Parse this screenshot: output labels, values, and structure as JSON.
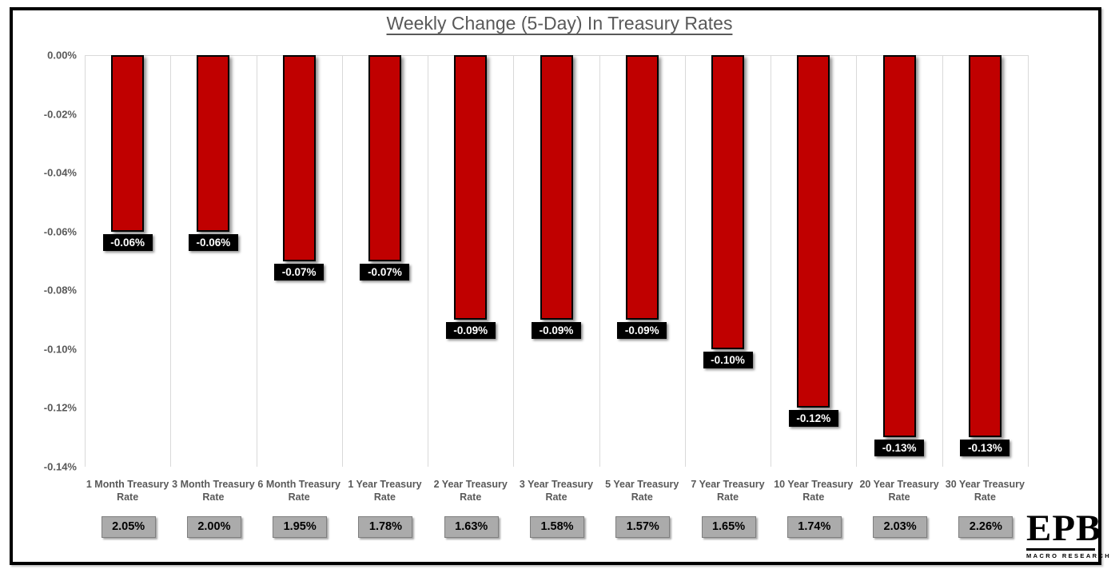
{
  "title": "Weekly Change (5-Day) In Treasury Rates",
  "logo": {
    "text": "EPB",
    "subtext": "MACRO RESEARCH"
  },
  "chart_data": {
    "type": "bar",
    "title": "Weekly Change (5-Day) In Treasury Rates",
    "categories": [
      "1 Month Treasury Rate",
      "3 Month Treasury Rate",
      "6 Month Treasury Rate",
      "1 Year Treasury Rate",
      "2 Year Treasury Rate",
      "3 Year Treasury Rate",
      "5 Year Treasury Rate",
      "7 Year Treasury Rate",
      "10 Year Treasury Rate",
      "20 Year Treasury Rate",
      "30 Year Treasury Rate"
    ],
    "values": [
      -0.06,
      -0.06,
      -0.07,
      -0.07,
      -0.09,
      -0.09,
      -0.09,
      -0.1,
      -0.12,
      -0.13,
      -0.13
    ],
    "value_labels": [
      "-0.06%",
      "-0.06%",
      "-0.07%",
      "-0.07%",
      "-0.09%",
      "-0.09%",
      "-0.09%",
      "-0.10%",
      "-0.12%",
      "-0.13%",
      "-0.13%"
    ],
    "current_rate_labels": [
      "2.05%",
      "2.00%",
      "1.95%",
      "1.78%",
      "1.63%",
      "1.58%",
      "1.57%",
      "1.65%",
      "1.74%",
      "2.03%",
      "2.26%"
    ],
    "xlabel": "",
    "ylabel": "",
    "ylim": [
      -0.14,
      0
    ],
    "ytick_step": 0.02,
    "ytick_labels": [
      "0.00%",
      "-0.02%",
      "-0.04%",
      "-0.06%",
      "-0.08%",
      "-0.10%",
      "-0.12%",
      "-0.14%"
    ],
    "grid": "vertical-category-separators-and-zero-line",
    "legend": "none",
    "colors": {
      "bar_fill": "#c00000",
      "bar_border": "#000000",
      "value_label_bg": "#000000",
      "value_label_text": "#ffffff",
      "rate_box_bg": "#ababab",
      "rate_box_border": "#7f7f7f",
      "gridline": "#d9d9d9",
      "axis_text": "#595959",
      "title_text": "#595959"
    }
  }
}
